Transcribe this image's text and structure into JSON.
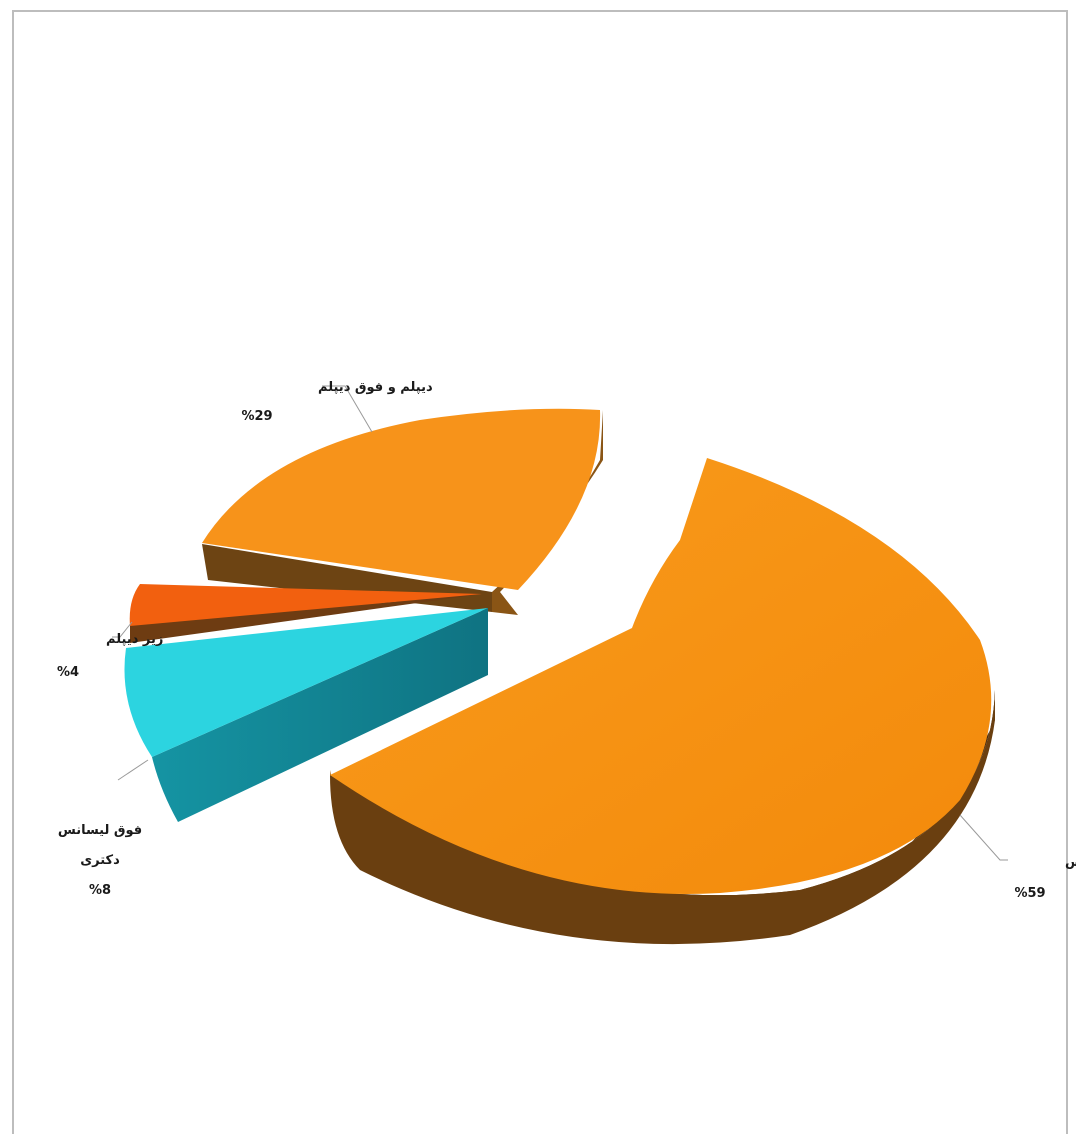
{
  "chart_data": {
    "type": "pie",
    "style": "3d-exploded",
    "title": "",
    "slices": [
      {
        "label": "لیسانس",
        "value_text": "%59",
        "value": 59,
        "color": "#f5910f",
        "side_color": "#7a4a12"
      },
      {
        "label": "دیپلم و فوق دیپلم",
        "value_text": "%29",
        "value": 29,
        "color": "#f5910f",
        "side_color": "#6e4413"
      },
      {
        "label": "زیر دیپلم",
        "value_text": "%4",
        "value": 4,
        "color": "#f2600f",
        "side_color": "#6e3b12"
      },
      {
        "label": "فوق لیسانس\nدکتری",
        "value_text": "%8",
        "value": 8,
        "color": "#27d3e0",
        "side_color": "#137f8f"
      }
    ]
  }
}
